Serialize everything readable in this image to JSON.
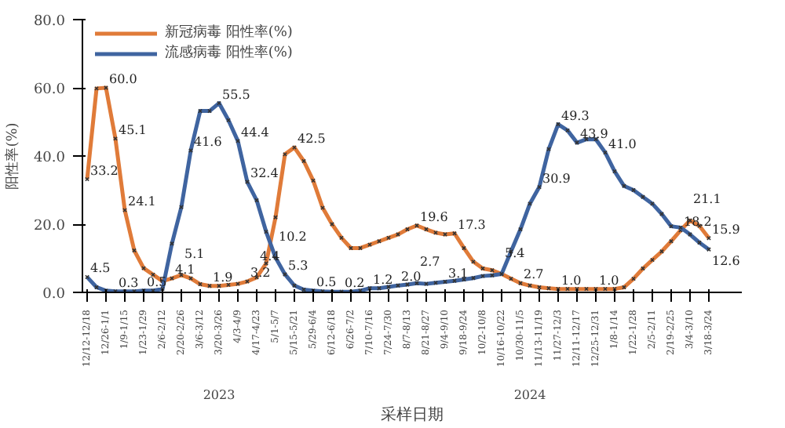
{
  "chart_data": {
    "type": "line",
    "xlabel": "采样日期",
    "ylabel": "阳性率(%)",
    "categories": [
      "12/12-12/18",
      null,
      "12/26-1/1",
      null,
      "1/9-1/15",
      null,
      "1/23-1/29",
      null,
      "2/6-2/12",
      null,
      "2/20-2/26",
      null,
      "3/6-3/12",
      null,
      "3/20-3/26",
      null,
      "4/3-4/9",
      null,
      "4/17-4/23",
      null,
      "5/1-5/7",
      null,
      "5/15-5/21",
      null,
      "5/29-6/4",
      null,
      "6/12-6/18",
      null,
      "6/26-7/2",
      null,
      "7/10-7/16",
      null,
      "7/24-7/30",
      null,
      "8/7-8/13",
      null,
      "8/21-8/27",
      null,
      "9/4-9/10",
      null,
      "9/18-9/24",
      null,
      "10/2-10/8",
      null,
      "10/16-10/22",
      null,
      "10/30-11/5",
      null,
      "11/13-11/19",
      null,
      "11/27-12/3",
      null,
      "12/11-12/17",
      null,
      "12/25-12/31",
      null,
      "1/8-1/14",
      null,
      "1/22-1/28",
      null,
      "2/5-2/11",
      null,
      "2/19-2/25",
      null,
      "3/4-3/10",
      null,
      "3/18-3/24"
    ],
    "series": [
      {
        "name": "新冠病毒 阳性率(%)",
        "color": "#e07b39",
        "values": [
          33.2,
          59.8,
          60.0,
          45.1,
          24.1,
          12.3,
          7.1,
          5.2,
          3.3,
          4.1,
          5.1,
          4.1,
          2.4,
          1.9,
          1.9,
          2.2,
          2.5,
          3.2,
          4.4,
          8.5,
          22,
          40.5,
          42.5,
          38.5,
          32.8,
          24.8,
          20,
          16,
          13,
          13,
          14,
          15,
          16,
          17,
          18.5,
          19.6,
          18.5,
          17.5,
          17.0,
          17.3,
          13,
          9,
          7,
          6.5,
          5.4,
          4,
          2.7,
          2.0,
          1.5,
          1.2,
          1.0,
          1.0,
          1.0,
          1.0,
          1.0,
          1.0,
          1.0,
          1.5,
          4,
          7,
          9.5,
          12,
          15,
          18.2,
          21.1,
          19.5,
          15.9
        ],
        "value_labels": [
          "33.2",
          null,
          "60.0",
          "45.1",
          "24.1",
          null,
          null,
          null,
          null,
          "4.1",
          "5.1",
          null,
          null,
          "1.9",
          null,
          null,
          null,
          "3.2",
          "4.4",
          null,
          null,
          null,
          "42.5",
          null,
          null,
          null,
          null,
          null,
          null,
          null,
          null,
          null,
          null,
          null,
          null,
          "19.6",
          null,
          null,
          null,
          "17.3",
          null,
          null,
          null,
          null,
          null,
          null,
          "2.7",
          null,
          null,
          null,
          "1.0",
          null,
          null,
          null,
          "1.0",
          null,
          null,
          null,
          null,
          null,
          null,
          null,
          null,
          "18.2",
          "21.1",
          null,
          "15.9"
        ]
      },
      {
        "name": "流感病毒 阳性率(%)",
        "color": "#3f64a0",
        "values": [
          4.5,
          1.5,
          0.5,
          0.3,
          0.3,
          0.3,
          0.5,
          0.5,
          1.0,
          14.3,
          25,
          41.6,
          53.2,
          53.2,
          55.5,
          50.5,
          44.4,
          32.4,
          27,
          17.8,
          10.2,
          5.3,
          2,
          0.8,
          0.5,
          0.3,
          0.2,
          0.2,
          0.2,
          0.5,
          1.2,
          1.2,
          1.6,
          2.0,
          2.3,
          2.7,
          2.5,
          2.8,
          3.1,
          3.4,
          3.8,
          4.2,
          4.8,
          5.0,
          5.4,
          12,
          18.5,
          26,
          30.9,
          42,
          49.3,
          47.5,
          43.9,
          44.9,
          44.9,
          41.0,
          35.5,
          31.2,
          30,
          28,
          26,
          23,
          19.4,
          19,
          17,
          14.6,
          12.6
        ],
        "value_labels": [
          "4.5",
          null,
          null,
          "0.3",
          null,
          null,
          "0.5",
          null,
          null,
          null,
          null,
          "41.6",
          null,
          null,
          "55.5",
          null,
          "44.4",
          "32.4",
          null,
          null,
          "10.2",
          "5.3",
          null,
          null,
          "0.5",
          null,
          null,
          "0.2",
          null,
          null,
          "1.2",
          null,
          null,
          "2.0",
          null,
          "2.7",
          null,
          null,
          "3.1",
          null,
          null,
          null,
          null,
          null,
          "5.4",
          null,
          null,
          null,
          "30.9",
          null,
          "49.3",
          null,
          "43.9",
          null,
          null,
          "41.0",
          null,
          null,
          null,
          null,
          null,
          null,
          null,
          null,
          null,
          null,
          "12.6"
        ]
      }
    ],
    "ylim": [
      0,
      80
    ],
    "yticks": [
      {
        "value": 0,
        "label": "0.0"
      },
      {
        "value": 20,
        "label": "20.0"
      },
      {
        "value": 40,
        "label": "40.0"
      },
      {
        "value": 60,
        "label": "60.0"
      },
      {
        "value": 80,
        "label": "80.0"
      }
    ],
    "annotations": [
      "2023",
      "2024"
    ],
    "grid": false,
    "legend": "top left",
    "marker": "cross",
    "line_style": "solid"
  }
}
